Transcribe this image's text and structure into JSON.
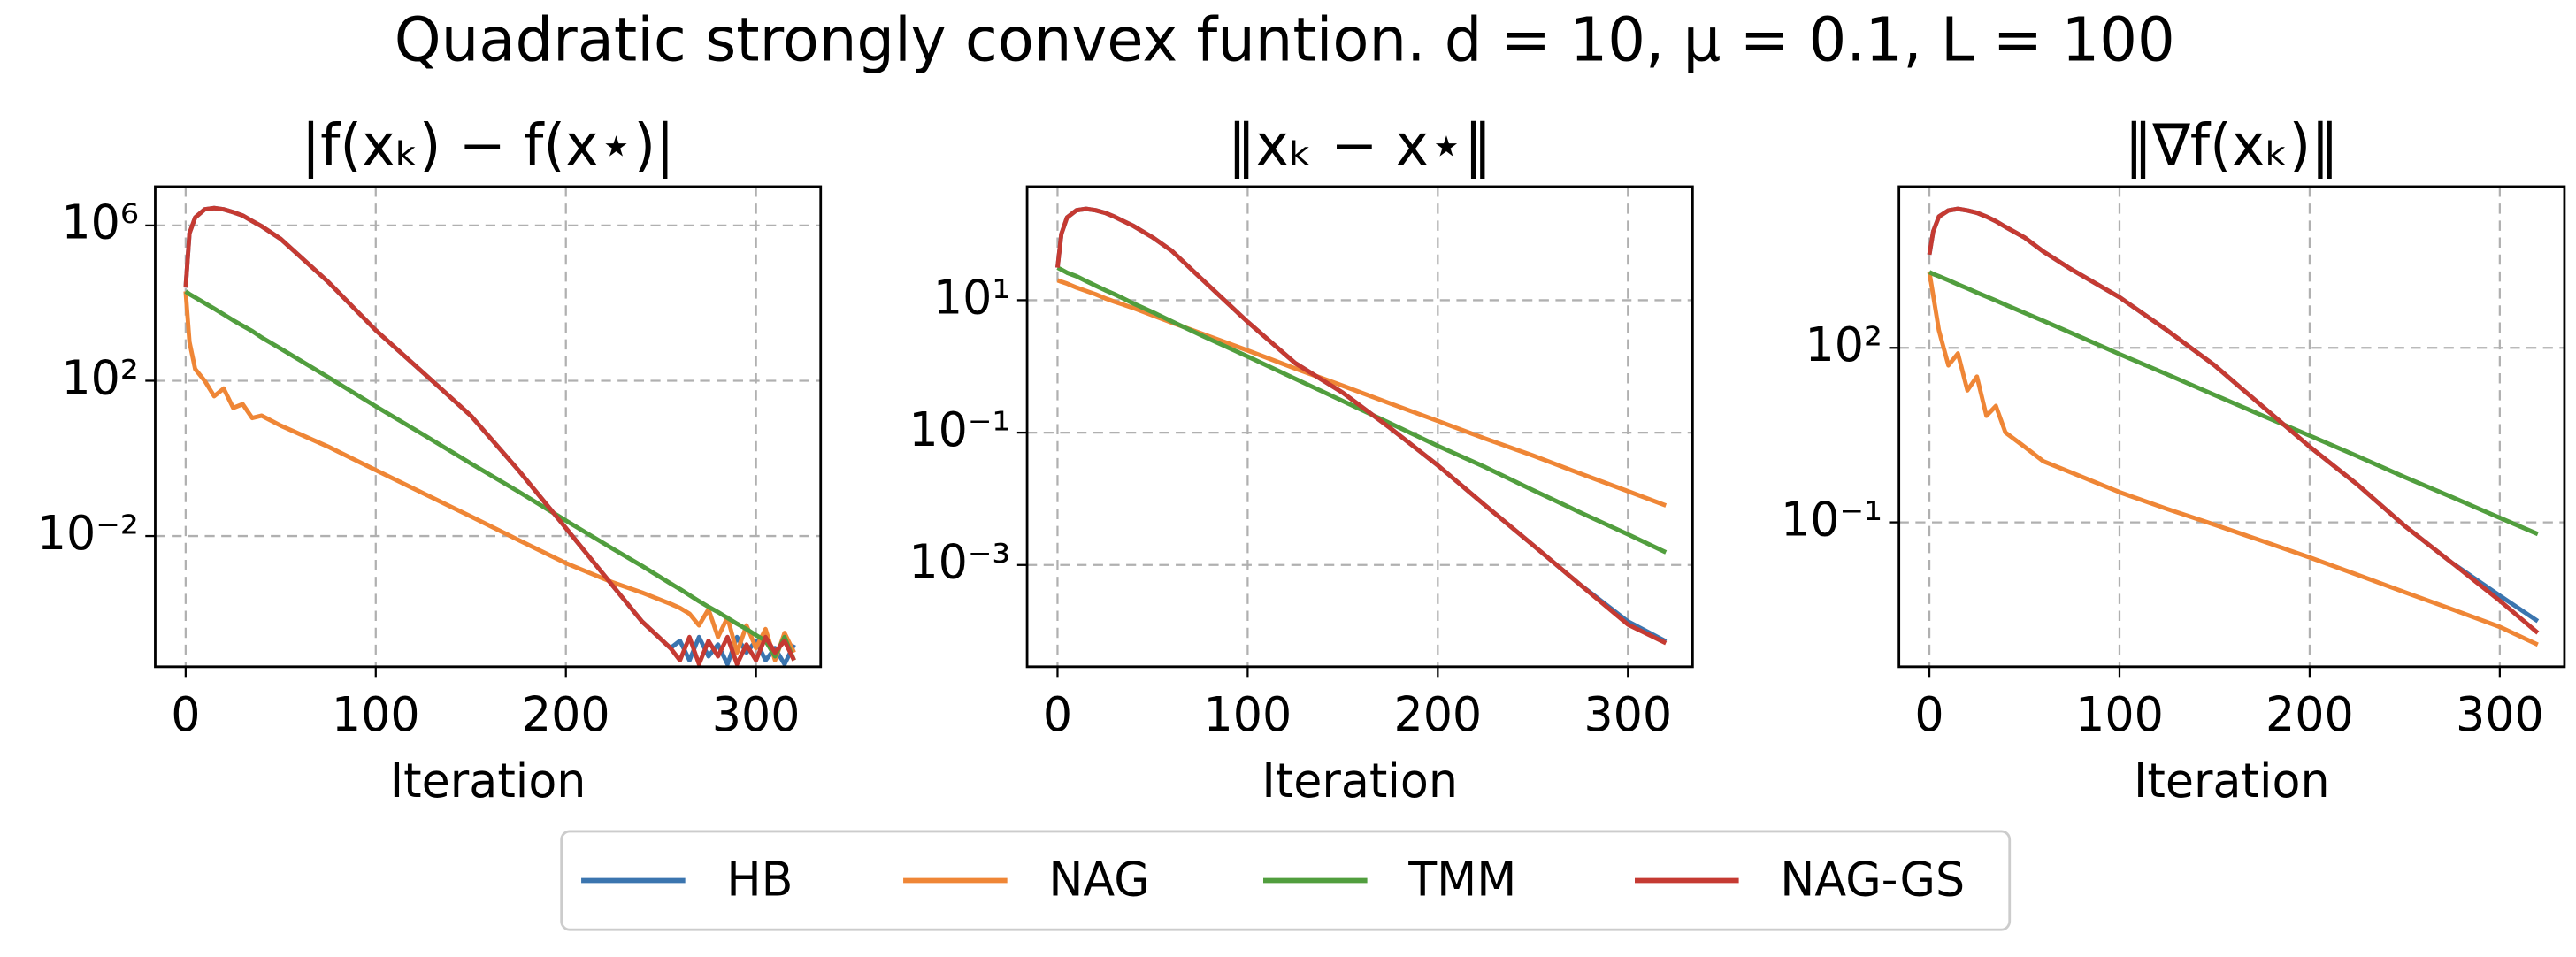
{
  "title": "Quadratic strongly convex funtion. d = 10, μ = 0.1, L = 100",
  "legend": [
    {
      "name": "HB",
      "color": "#3b75af"
    },
    {
      "name": "NAG",
      "color": "#ef8636"
    },
    {
      "name": "TMM",
      "color": "#519e3e"
    },
    {
      "name": "NAG-GS",
      "color": "#c53a32"
    }
  ],
  "chart_data": [
    {
      "type": "line",
      "title": "|f(xₖ) − f(x⋆)|",
      "xlabel": "Iteration",
      "log_y": true,
      "grid": true,
      "xlim": [
        -16,
        334
      ],
      "xticks": [
        0,
        100,
        200,
        300
      ],
      "ylim": [
        4.3e-06,
        10000000.0
      ],
      "yticks": [
        {
          "value": 1000000.0,
          "label": "10⁶"
        },
        {
          "value": 100,
          "label": "10²"
        },
        {
          "value": 0.01,
          "label": "10⁻²"
        }
      ],
      "x": [
        0,
        2,
        5,
        10,
        15,
        20,
        25,
        30,
        35,
        40,
        50,
        75,
        100,
        125,
        150,
        175,
        200,
        225,
        240,
        255,
        260,
        265,
        270,
        275,
        280,
        285,
        290,
        295,
        300,
        305,
        310,
        315,
        320
      ],
      "series": [
        {
          "values": [
            25000,
            630000,
            1600000,
            2600000,
            2800000,
            2600000,
            2200000,
            1800000,
            1300000,
            950000,
            450000,
            35000,
            2000,
            160,
            12.6,
            0.5,
            0.016,
            0.0005,
            6.3e-05,
            1.3e-05,
            2e-05,
            6.3e-06,
            2.5e-05,
            8e-06,
            1.6e-05,
            5e-06,
            2.5e-05,
            1e-05,
            2e-05,
            6.3e-06,
            1.3e-05,
            5e-06,
            1.6e-05
          ]
        },
        {
          "values": [
            20000,
            1000,
            200,
            100,
            40,
            63,
            20,
            25,
            11,
            12.6,
            7,
            2,
            0.5,
            0.126,
            0.032,
            0.0079,
            0.002,
            0.00063,
            0.00035,
            0.00018,
            0.00014,
            0.0001,
            5e-05,
            0.00013,
            2.5e-05,
            8e-05,
            1e-05,
            5e-05,
            1.3e-05,
            4e-05,
            6.3e-06,
            3.2e-05,
            1e-05
          ]
        },
        {
          "values": [
            20000,
            17000,
            14000,
            10000,
            7200,
            5100,
            3600,
            2600,
            1900,
            1300,
            670,
            123,
            22,
            4.1,
            0.74,
            0.14,
            0.025,
            0.0046,
            0.0017,
            0.0006,
            0.00043,
            0.0003,
            0.00021,
            0.00015,
            0.00011,
            7.8e-05,
            5.5e-05,
            4e-05,
            2.8e-05,
            2e-05,
            8e-06,
            2.5e-05,
            6.3e-06
          ]
        },
        {
          "values": [
            25000,
            630000,
            1600000,
            2600000,
            2800000,
            2600000,
            2200000,
            1800000,
            1300000,
            950000,
            450000,
            35000,
            2000,
            160,
            12.6,
            0.5,
            0.016,
            0.0005,
            6.3e-05,
            1.3e-05,
            6.3e-06,
            2.5e-05,
            5e-06,
            2e-05,
            8e-06,
            2.5e-05,
            5e-06,
            1.6e-05,
            6.3e-06,
            2.5e-05,
            1e-05,
            2e-05,
            6.3e-06
          ]
        }
      ]
    },
    {
      "type": "line",
      "title": "‖xₖ − x⋆‖",
      "xlabel": "Iteration",
      "log_y": true,
      "grid": true,
      "xlim": [
        -16,
        334
      ],
      "xticks": [
        0,
        100,
        200,
        300
      ],
      "ylim": [
        2.9e-05,
        520
      ],
      "yticks": [
        {
          "value": 10,
          "label": "10¹"
        },
        {
          "value": 0.1,
          "label": "10⁻¹"
        },
        {
          "value": 0.001,
          "label": "10⁻³"
        }
      ],
      "x": [
        0,
        2,
        5,
        10,
        15,
        20,
        25,
        30,
        35,
        40,
        50,
        60,
        75,
        100,
        125,
        150,
        175,
        200,
        225,
        250,
        275,
        300,
        320
      ],
      "series": [
        {
          "values": [
            31,
            100,
            178,
            229,
            240,
            229,
            209,
            182,
            155,
            132,
            89,
            56,
            22,
            4.7,
            1.12,
            0.4,
            0.117,
            0.032,
            0.0079,
            0.002,
            0.0005,
            0.00014,
            7e-05
          ]
        },
        {
          "values": [
            20,
            19,
            17.8,
            15.5,
            13.8,
            12.3,
            10.7,
            9.5,
            8.5,
            7.6,
            5.9,
            4.6,
            3.2,
            1.74,
            0.93,
            0.51,
            0.275,
            0.15,
            0.081,
            0.045,
            0.024,
            0.013,
            0.0079
          ]
        },
        {
          "values": [
            31,
            29,
            26,
            23,
            19.5,
            16.6,
            14.2,
            12.3,
            10.5,
            8.9,
            6.6,
            4.8,
            3,
            1.41,
            0.65,
            0.3,
            0.138,
            0.063,
            0.03,
            0.0135,
            0.0062,
            0.0029,
            0.00155
          ]
        },
        {
          "values": [
            31,
            100,
            178,
            229,
            240,
            229,
            209,
            182,
            155,
            132,
            89,
            56,
            22,
            4.7,
            1.12,
            0.4,
            0.117,
            0.032,
            0.0079,
            0.002,
            0.0005,
            0.000126,
            6.6e-05
          ]
        }
      ]
    },
    {
      "type": "line",
      "title": "‖∇f(xₖ)‖",
      "xlabel": "Iteration",
      "log_y": true,
      "grid": true,
      "xlim": [
        -16,
        334
      ],
      "xticks": [
        0,
        100,
        200,
        300
      ],
      "ylim": [
        0.00033,
        59000
      ],
      "yticks": [
        {
          "value": 100,
          "label": "10²"
        },
        {
          "value": 0.1,
          "label": "10⁻¹"
        }
      ],
      "x": [
        0,
        2,
        5,
        10,
        15,
        20,
        25,
        30,
        35,
        40,
        50,
        60,
        75,
        100,
        125,
        150,
        175,
        200,
        225,
        250,
        275,
        300,
        320
      ],
      "series": [
        {
          "values": [
            4000,
            10000,
            18000,
            23000,
            24500,
            23000,
            21000,
            18000,
            15000,
            12000,
            7900,
            4500,
            2200,
            740,
            200,
            50,
            10,
            2,
            0.45,
            0.087,
            0.02,
            0.0055,
            0.002
          ]
        },
        {
          "values": [
            2000,
            800,
            200,
            50,
            80,
            18.6,
            32,
            6.8,
            10,
            3.5,
            2,
            1.12,
            0.71,
            0.33,
            0.17,
            0.091,
            0.048,
            0.025,
            0.0126,
            0.0063,
            0.0032,
            0.0016,
            0.00079
          ]
        },
        {
          "values": [
            2000,
            1860,
            1700,
            1450,
            1230,
            1050,
            890,
            760,
            650,
            550,
            400,
            290,
            178,
            78,
            35,
            15.5,
            6.9,
            3.1,
            1.38,
            0.6,
            0.27,
            0.12,
            0.063
          ]
        },
        {
          "values": [
            4000,
            10000,
            18000,
            23000,
            24500,
            23000,
            21000,
            18000,
            15000,
            12000,
            7900,
            4500,
            2200,
            740,
            200,
            50,
            10,
            2,
            0.45,
            0.087,
            0.02,
            0.0045,
            0.00126
          ]
        }
      ]
    }
  ]
}
